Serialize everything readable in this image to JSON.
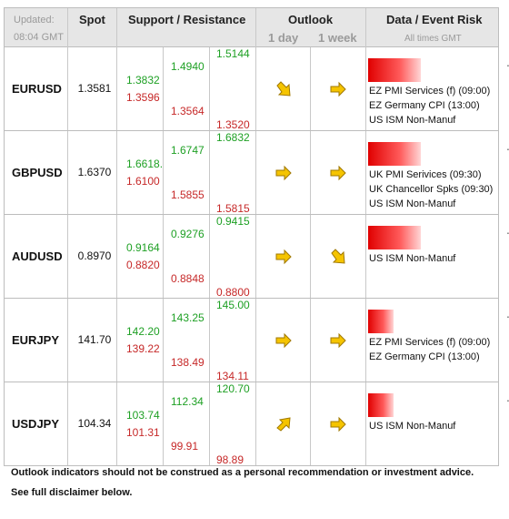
{
  "header": {
    "updated_label": "Updated:",
    "updated_time": "08:04 GMT",
    "spot": "Spot",
    "support_resistance": "Support / Resistance",
    "outlook": "Outlook",
    "outlook_1day": "1 day",
    "outlook_1week": "1 week",
    "event_risk": "Data / Event Risk",
    "all_times": "All times GMT"
  },
  "rows": [
    {
      "pair": "EURUSD",
      "spot": "1.3581",
      "r1": "1.3832",
      "s1": "1.3596",
      "r2": "1.4940",
      "s2": "1.3564",
      "r3": "1.5144",
      "s3": "1.3520",
      "outlook_1day": "down-right",
      "outlook_1week": "right",
      "risk_level": 0.55,
      "events": [
        "EZ PMI Services (f) (09:00)",
        "EZ Germany CPI (13:00)",
        "US ISM Non-Manuf"
      ]
    },
    {
      "pair": "GBPUSD",
      "spot": "1.6370",
      "r1": "1.6618.",
      "s1": "1.6100",
      "r2": "1.6747",
      "s2": "1.5855",
      "r3": "1.6832",
      "s3": "1.5815",
      "outlook_1day": "right",
      "outlook_1week": "right",
      "risk_level": 0.55,
      "events": [
        "UK PMI Serivices (09:30)",
        "UK Chancellor Spks (09:30)",
        "US ISM Non-Manuf"
      ]
    },
    {
      "pair": "AUDUSD",
      "spot": "0.8970",
      "r1": "0.9164",
      "s1": "0.8820",
      "r2": "0.9276",
      "s2": "0.8848",
      "r3": "0.9415",
      "s3": "0.8800",
      "outlook_1day": "right",
      "outlook_1week": "down-right",
      "risk_level": 0.55,
      "events": [
        "US ISM Non-Manuf"
      ]
    },
    {
      "pair": "EURJPY",
      "spot": "141.70",
      "r1": "142.20",
      "s1": "139.22",
      "r2": "143.25",
      "s2": "138.49",
      "r3": "145.00",
      "s3": "134.11",
      "outlook_1day": "right",
      "outlook_1week": "right",
      "risk_level": 0.27,
      "events": [
        "EZ PMI Services (f) (09:00)",
        "EZ Germany CPI (13:00)"
      ]
    },
    {
      "pair": "USDJPY",
      "spot": "104.34",
      "r1": "103.74",
      "s1": "101.31",
      "r2": "112.34",
      "s2": "99.91",
      "r3": "120.70",
      "s3": "98.89",
      "outlook_1day": "up-right",
      "outlook_1week": "right",
      "risk_level": 0.27,
      "events": [
        "US ISM Non-Manuf"
      ]
    }
  ],
  "footer": {
    "line1": "Outlook indicators should not be construed as a personal recommendation or investment advice.",
    "line2": "See full disclaimer below."
  },
  "colors": {
    "resistance": "#1ea024",
    "support": "#c62828",
    "arrow_fill": "#f5c400",
    "arrow_stroke": "#a07800",
    "header_bg": "#e6e6e6"
  }
}
